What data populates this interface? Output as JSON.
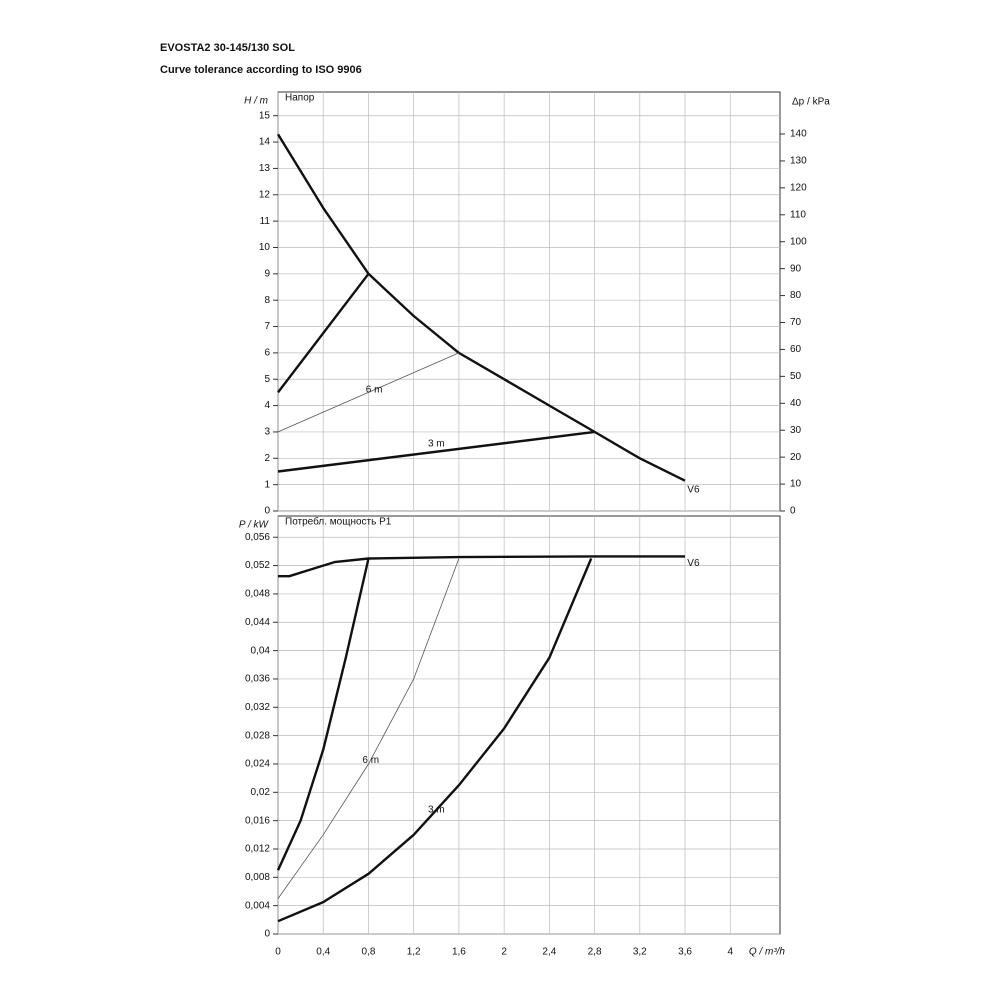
{
  "chart_data": [
    {
      "type": "line",
      "title": "EVOSTA2 30-145/130 SOL",
      "subtitle": "Curve tolerance according to ISO 9906",
      "y_label": "H / m",
      "y2_label": "Δp / kPa",
      "panel_label": "Напор",
      "xlim": [
        0,
        4.44
      ],
      "ylim": [
        0,
        15.9
      ],
      "yticks": [
        0,
        1,
        2,
        3,
        4,
        5,
        6,
        7,
        8,
        9,
        10,
        11,
        12,
        13,
        14,
        15
      ],
      "y2lim": [
        0,
        155.6
      ],
      "y2ticks": [
        0,
        10,
        20,
        30,
        40,
        50,
        60,
        70,
        80,
        90,
        100,
        110,
        120,
        130,
        140
      ],
      "grid": true,
      "series": [
        {
          "name": "V6",
          "color": "#111111",
          "x": [
            0,
            0.4,
            0.8,
            1.2,
            1.6,
            2.0,
            2.4,
            2.8,
            3.2,
            3.6
          ],
          "values": [
            14.3,
            11.5,
            9.0,
            7.4,
            6.0,
            5.0,
            4.0,
            3.0,
            2.0,
            1.15
          ]
        },
        {
          "color": "#111111",
          "x": [
            0,
            0.8
          ],
          "values": [
            4.5,
            9.0
          ]
        },
        {
          "name": "6 m",
          "color": "#555555",
          "x": [
            0,
            1.6
          ],
          "values": [
            3.0,
            6.0
          ]
        },
        {
          "name": "3 m",
          "color": "#111111",
          "x": [
            0,
            2.8
          ],
          "values": [
            1.5,
            3.0
          ]
        }
      ]
    },
    {
      "type": "line",
      "y_label": "P / kW",
      "panel_label": "Потребл. мощность P1",
      "x_label": "Q / m³/h",
      "xlim": [
        0,
        4.44
      ],
      "ylim": [
        0,
        0.059
      ],
      "grid": true,
      "xticks": [
        0,
        {
          "value": 0.4,
          "label": "0,4"
        },
        {
          "value": 0.8,
          "label": "0,8"
        },
        {
          "value": 1.2,
          "label": "1,2"
        },
        {
          "value": 1.6,
          "label": "1,6"
        },
        2,
        {
          "value": 2.4,
          "label": "2,4"
        },
        {
          "value": 2.8,
          "label": "2,8"
        },
        {
          "value": 3.2,
          "label": "3,2"
        },
        {
          "value": 3.6,
          "label": "3,6"
        },
        4
      ],
      "yticks": [
        0,
        {
          "value": 0.004,
          "label": "0,004"
        },
        {
          "value": 0.008,
          "label": "0,008"
        },
        {
          "value": 0.012,
          "label": "0,012"
        },
        {
          "value": 0.016,
          "label": "0,016"
        },
        {
          "value": 0.02,
          "label": "0,02"
        },
        {
          "value": 0.024,
          "label": "0,024"
        },
        {
          "value": 0.028,
          "label": "0,028"
        },
        {
          "value": 0.032,
          "label": "0,032"
        },
        {
          "value": 0.036,
          "label": "0,036"
        },
        {
          "value": 0.04,
          "label": "0,04"
        },
        {
          "value": 0.044,
          "label": "0,044"
        },
        {
          "value": 0.048,
          "label": "0,048"
        },
        {
          "value": 0.052,
          "label": "0,052"
        },
        {
          "value": 0.056,
          "label": "0,056"
        }
      ],
      "series": [
        {
          "name": "V6",
          "color": "#111111",
          "x": [
            0,
            0.1,
            0.3,
            0.5,
            0.8,
            1.6,
            2.8,
            3.6
          ],
          "values": [
            0.0505,
            0.0505,
            0.0515,
            0.0525,
            0.053,
            0.0532,
            0.0533,
            0.0533
          ]
        },
        {
          "color": "#111111",
          "x": [
            0,
            0.2,
            0.4,
            0.6,
            0.8
          ],
          "values": [
            0.009,
            0.016,
            0.026,
            0.039,
            0.053
          ]
        },
        {
          "name": "6 m",
          "color": "#555555",
          "x": [
            0,
            0.4,
            0.8,
            1.2,
            1.6
          ],
          "values": [
            0.005,
            0.014,
            0.024,
            0.036,
            0.053
          ]
        },
        {
          "name": "3 m",
          "color": "#111111",
          "x": [
            0,
            0.4,
            0.8,
            1.2,
            1.6,
            2.0,
            2.4,
            2.77
          ],
          "values": [
            0.0018,
            0.0045,
            0.0085,
            0.014,
            0.021,
            0.029,
            0.039,
            0.053
          ]
        }
      ]
    }
  ]
}
